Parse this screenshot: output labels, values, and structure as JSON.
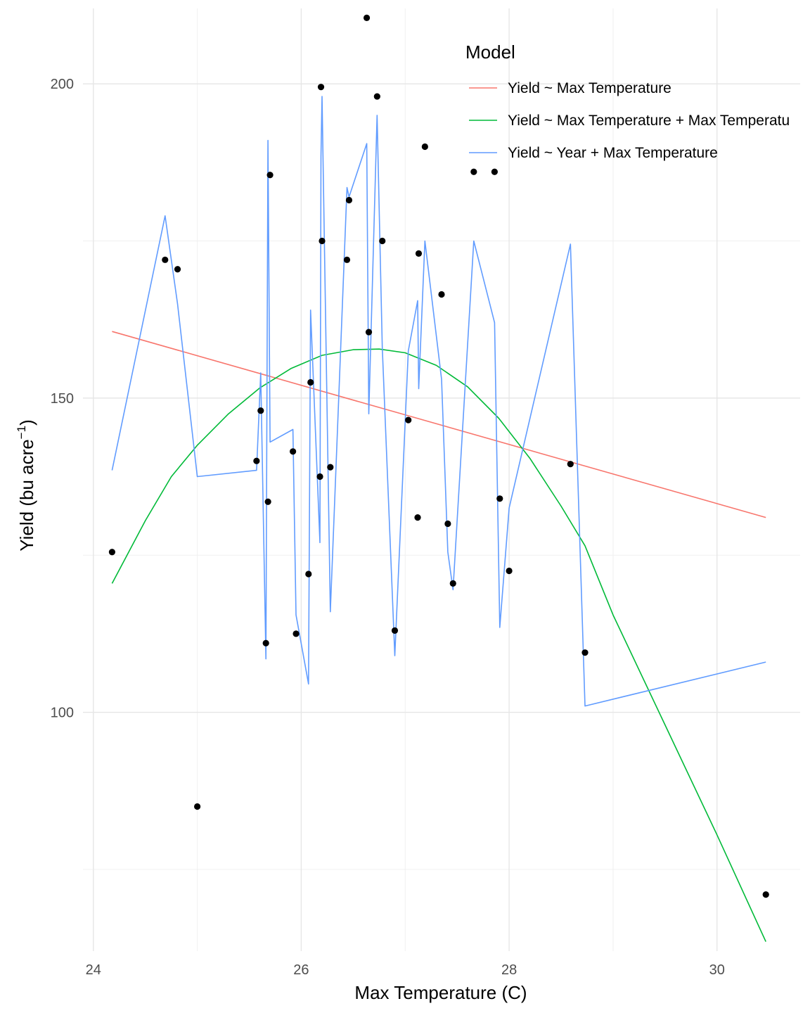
{
  "chart_data": {
    "type": "scatter",
    "xlabel": "Max Temperature (C)",
    "ylabel_main": "Yield (bu acre",
    "ylabel_sup": "−1",
    "ylabel_close": ")",
    "xlim": [
      23.9,
      30.8
    ],
    "ylim": [
      62,
      212
    ],
    "x_ticks": [
      24,
      26,
      28,
      30
    ],
    "x_tick_labels": [
      "24",
      "26",
      "28",
      "30"
    ],
    "x_minor_ticks": [
      25,
      27,
      29
    ],
    "y_ticks": [
      100,
      150,
      200
    ],
    "y_tick_labels": [
      "100",
      "150",
      "200"
    ],
    "y_minor_ticks": [
      75,
      125,
      175
    ],
    "grid": true,
    "legend": {
      "title": "Model",
      "position": "top-right",
      "entries": [
        {
          "label": "Yield ~ Max Temperature",
          "color": "#F8766D"
        },
        {
          "label": "Yield ~ Max Temperature + Max Temperatu",
          "color": "#00BA38"
        },
        {
          "label": "Yield ~ Year + Max Temperature",
          "color": "#619CFF"
        }
      ]
    },
    "points": {
      "color": "#000000",
      "x": [
        24.18,
        24.69,
        24.81,
        25.0,
        25.57,
        25.61,
        25.66,
        25.68,
        25.7,
        25.92,
        25.95,
        26.07,
        26.09,
        26.18,
        26.19,
        26.2,
        26.28,
        26.44,
        26.46,
        26.63,
        26.65,
        26.73,
        26.78,
        26.9,
        27.03,
        27.12,
        27.13,
        27.19,
        27.35,
        27.41,
        27.46,
        27.66,
        27.86,
        27.91,
        28.0,
        28.59,
        28.73,
        30.47
      ],
      "y": [
        125.5,
        172.0,
        170.5,
        85.0,
        140.0,
        148.0,
        111.0,
        133.5,
        185.5,
        141.5,
        112.5,
        122.0,
        152.5,
        137.5,
        199.5,
        175.0,
        139.0,
        172.0,
        181.5,
        210.5,
        160.5,
        198.0,
        175.0,
        113.0,
        146.5,
        131.0,
        173.0,
        190.0,
        166.5,
        130.0,
        120.5,
        186.0,
        186.0,
        134.0,
        122.5,
        139.5,
        109.5,
        71.0
      ]
    },
    "series": [
      {
        "name": "Yield ~ Max Temperature",
        "color": "#F8766D",
        "x": [
          24.18,
          30.47
        ],
        "y": [
          160.6,
          131.0
        ]
      },
      {
        "name": "Yield ~ Max Temperature + Max Temperatu",
        "color": "#00BA38",
        "x": [
          24.18,
          24.5,
          24.75,
          25.0,
          25.3,
          25.6,
          25.9,
          26.2,
          26.5,
          26.75,
          27.0,
          27.3,
          27.6,
          27.9,
          28.2,
          28.5,
          28.73,
          29.0,
          29.5,
          30.0,
          30.47
        ],
        "y": [
          120.5,
          130.5,
          137.5,
          142.5,
          147.5,
          151.6,
          154.7,
          156.8,
          157.7,
          157.8,
          157.2,
          155.2,
          151.8,
          146.8,
          140.4,
          132.8,
          126.5,
          115.5,
          98.0,
          80.5,
          63.5
        ]
      },
      {
        "name": "Yield ~ Year + Max Temperature",
        "color": "#619CFF",
        "x": [
          24.18,
          24.69,
          24.81,
          25.0,
          25.57,
          25.61,
          25.66,
          25.68,
          25.7,
          25.92,
          25.95,
          26.07,
          26.09,
          26.18,
          26.19,
          26.2,
          26.28,
          26.44,
          26.46,
          26.63,
          26.65,
          26.73,
          26.78,
          26.9,
          27.03,
          27.12,
          27.13,
          27.19,
          27.35,
          27.41,
          27.46,
          27.66,
          27.86,
          27.91,
          28.0,
          28.59,
          28.73,
          30.47
        ],
        "y": [
          138.5,
          179.0,
          165.0,
          137.5,
          138.5,
          154.0,
          108.5,
          191.0,
          143.0,
          145.0,
          115.5,
          104.5,
          164.0,
          127.0,
          188.5,
          198.0,
          116.0,
          183.5,
          182.0,
          190.5,
          147.5,
          195.0,
          158.0,
          109.0,
          157.5,
          165.5,
          151.5,
          175.0,
          153.0,
          125.5,
          119.5,
          175.0,
          162.0,
          113.5,
          132.5,
          174.5,
          101.0,
          108.0
        ]
      }
    ]
  }
}
